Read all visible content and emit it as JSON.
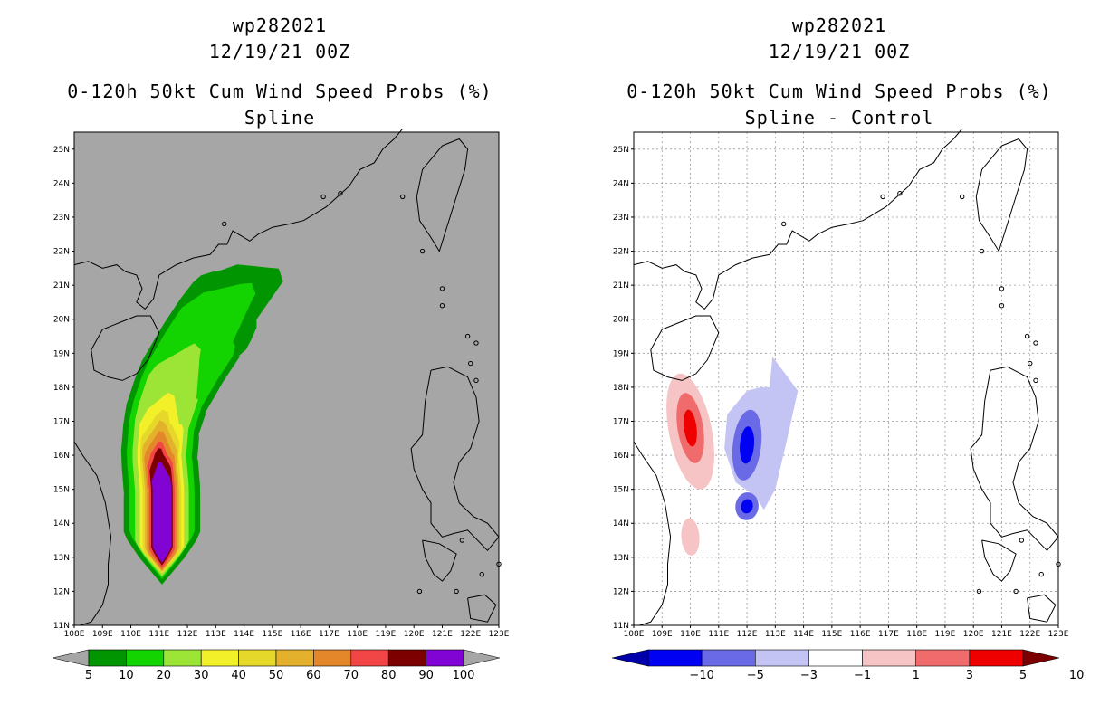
{
  "chart_data": [
    {
      "type": "heatmap",
      "storm_id": "wp282021",
      "datetime": "12/19/21 00Z",
      "title": "0-120h 50kt Cum Wind Speed Probs (%)",
      "subtitle": "Spline",
      "xlim": [
        108,
        123
      ],
      "ylim": [
        11,
        25.5
      ],
      "x_ticks": [
        "108E",
        "109E",
        "110E",
        "111E",
        "112E",
        "113E",
        "114E",
        "115E",
        "116E",
        "117E",
        "118E",
        "119E",
        "120E",
        "121E",
        "122E",
        "123E"
      ],
      "y_ticks": [
        "11N",
        "12N",
        "13N",
        "14N",
        "15N",
        "16N",
        "17N",
        "18N",
        "19N",
        "20N",
        "21N",
        "22N",
        "23N",
        "24N",
        "25N"
      ],
      "grid": false,
      "background_color": "#a6a6a6",
      "colorbar": {
        "levels": [
          "5",
          "10",
          "20",
          "30",
          "40",
          "50",
          "60",
          "70",
          "80",
          "90",
          "100"
        ],
        "colors": [
          "#019601",
          "#13d300",
          "#9ce436",
          "#f2f029",
          "#e6d82a",
          "#e3b12b",
          "#e3872a",
          "#f24545",
          "#7c0000",
          "#8204d4"
        ],
        "under_color": "#a6a6a6",
        "over_color": "#a6a6a6"
      },
      "contour_regions": [
        {
          "min": 5,
          "color": "#019601"
        },
        {
          "min": 10,
          "color": "#13d300"
        },
        {
          "min": 20,
          "color": "#9ce436"
        },
        {
          "min": 30,
          "color": "#f2f029"
        },
        {
          "min": 40,
          "color": "#e6d82a"
        },
        {
          "min": 50,
          "color": "#e3b12b"
        },
        {
          "min": 60,
          "color": "#e3872a"
        },
        {
          "min": 70,
          "color": "#f24545"
        },
        {
          "min": 80,
          "color": "#7c0000"
        },
        {
          "min": 90,
          "color": "#8204d4"
        }
      ]
    },
    {
      "type": "heatmap",
      "storm_id": "wp282021",
      "datetime": "12/19/21 00Z",
      "title": "0-120h 50kt Cum Wind Speed Probs (%)",
      "subtitle": "Spline - Control",
      "xlim": [
        108,
        123
      ],
      "ylim": [
        11,
        25.5
      ],
      "x_ticks": [
        "108E",
        "109E",
        "110E",
        "111E",
        "112E",
        "113E",
        "114E",
        "115E",
        "116E",
        "117E",
        "118E",
        "119E",
        "120E",
        "121E",
        "122E",
        "123E"
      ],
      "y_ticks": [
        "11N",
        "12N",
        "13N",
        "14N",
        "15N",
        "16N",
        "17N",
        "18N",
        "19N",
        "20N",
        "21N",
        "22N",
        "23N",
        "24N",
        "25N"
      ],
      "grid": true,
      "background_color": "#ffffff",
      "colorbar": {
        "levels": [
          "-10",
          "-5",
          "-3",
          "-1",
          "1",
          "3",
          "5",
          "10"
        ],
        "colors": [
          "#0000aa",
          "#0000f2",
          "#6a6ae6",
          "#c4c4f4",
          "#ffffff",
          "#f6c4c4",
          "#f06c6c",
          "#ee0000",
          "#7c0000"
        ],
        "under_color": "#0000aa",
        "over_color": "#7c0000"
      },
      "difference_features": [
        {
          "sign": "positive",
          "center_lon": 110.0,
          "center_lat": 16.8,
          "max_level": "5 to 10"
        },
        {
          "sign": "positive",
          "center_lon": 110.0,
          "center_lat": 13.6,
          "max_level": "1 to 3"
        },
        {
          "sign": "negative",
          "center_lon": 112.0,
          "center_lat": 16.3,
          "max_level": "-10 to -5"
        },
        {
          "sign": "negative",
          "center_lon": 112.0,
          "center_lat": 14.5,
          "max_level": "-10 to -5"
        }
      ]
    }
  ]
}
